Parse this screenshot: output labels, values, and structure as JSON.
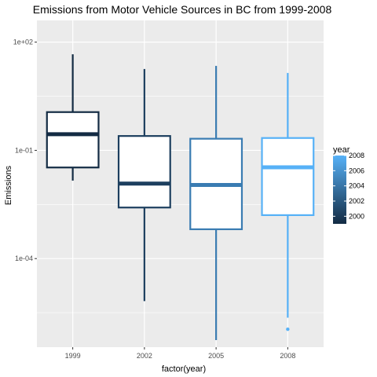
{
  "chart_data": {
    "type": "boxplot",
    "title": "Emissions from Motor Vehicle Sources in BC from 1999-2008",
    "xlabel": "factor(year)",
    "ylabel": "Emissions",
    "y_scale": "log10",
    "ylim": [
      3.5e-07,
      400
    ],
    "y_ticks": [
      {
        "value": 0.0001,
        "label": "1e-04"
      },
      {
        "value": 0.1,
        "label": "1e-01"
      },
      {
        "value": 100,
        "label": "1e+02"
      }
    ],
    "categories": [
      "1999",
      "2002",
      "2005",
      "2008"
    ],
    "boxes": [
      {
        "category": "1999",
        "year": 1999,
        "min": 0.0145,
        "q1": 0.0335,
        "median": 0.28,
        "q3": 1.15,
        "max": 46,
        "outliers": [],
        "color": "#132b43"
      },
      {
        "category": "2002",
        "year": 2002,
        "min": 6.6e-06,
        "q1": 0.0026,
        "median": 0.012,
        "q3": 0.25,
        "max": 18,
        "outliers": [],
        "color": "#1d3f5f"
      },
      {
        "category": "2005",
        "year": 2005,
        "min": 5.5e-07,
        "q1": 0.00065,
        "median": 0.011,
        "q3": 0.21,
        "max": 22,
        "outliers": [],
        "color": "#3a7cb2"
      },
      {
        "category": "2008",
        "year": 2008,
        "min": 2.3e-06,
        "q1": 0.0016,
        "median": 0.034,
        "q3": 0.22,
        "max": 14,
        "outliers": [
          1.1e-06
        ],
        "color": "#56b1f7"
      }
    ],
    "legend": {
      "title": "year",
      "position": "right",
      "gradient_low": "#132b43",
      "gradient_high": "#56b1f7",
      "range": [
        1999,
        2008
      ],
      "ticks": [
        2000,
        2002,
        2004,
        2006,
        2008
      ],
      "tick_labels": [
        "2000",
        "2002",
        "2004",
        "2006",
        "2008"
      ]
    },
    "grid": true,
    "panel_background": "#ebebeb",
    "grid_color": "#ffffff"
  }
}
